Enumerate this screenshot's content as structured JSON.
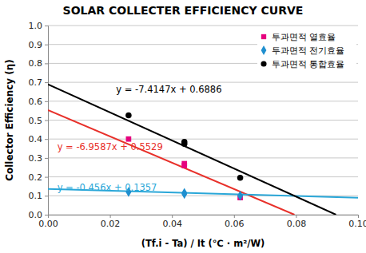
{
  "chart_data": {
    "type": "scatter",
    "title": "SOLAR COLLECTER EFFICIENCY CURVE",
    "x_label": "(Tf.i - Ta) / It  (℃ · m²/W)",
    "y_label": "Collector Efficiency (η)",
    "series": [
      {
        "name": "투과면적 열효율",
        "color": "#e6007e",
        "marker": "square",
        "x": [
          0.026,
          0.044,
          0.044,
          0.062
        ],
        "values": [
          0.4,
          0.27,
          0.26,
          0.09
        ]
      },
      {
        "name": "투과면적 전기효율",
        "color": "#1f8fcf",
        "marker": "diamond",
        "x": [
          0.026,
          0.044,
          0.044,
          0.062
        ],
        "values": [
          0.12,
          0.115,
          0.11,
          0.1
        ]
      },
      {
        "name": "투과면적 통합효율",
        "color": "#000000",
        "marker": "circle",
        "x": [
          0.026,
          0.044,
          0.044,
          0.062
        ],
        "values": [
          0.525,
          0.385,
          0.375,
          0.195
        ]
      }
    ],
    "trendlines": [
      {
        "equation": "y = -6.9587x + 0.5529",
        "color": "#e8302a",
        "x": [
          0,
          0.0795
        ],
        "values": [
          0.553,
          0
        ]
      },
      {
        "equation": "y = -0.456x + 0.1357",
        "color": "#2aa7d8",
        "x": [
          0,
          0.1
        ],
        "values": [
          0.136,
          0.09
        ]
      },
      {
        "equation": "y = -7.4147x + 0.6886",
        "color": "#000000",
        "x": [
          0,
          0.0929
        ],
        "values": [
          0.689,
          0
        ]
      }
    ],
    "xlim": [
      0,
      0.1
    ],
    "xticks": [
      {
        "value": 0,
        "label": "0.00"
      },
      {
        "value": 0.02,
        "label": "0.02"
      },
      {
        "value": 0.04,
        "label": "0.04"
      },
      {
        "value": 0.06,
        "label": "0.06"
      },
      {
        "value": 0.08,
        "label": "0.08"
      },
      {
        "value": 0.1,
        "label": "0.10"
      }
    ],
    "ylim": [
      0,
      1
    ],
    "yticks": [
      {
        "value": 0,
        "label": "0.0"
      },
      {
        "value": 0.1,
        "label": "0.1"
      },
      {
        "value": 0.2,
        "label": "0.2"
      },
      {
        "value": 0.3,
        "label": "0.3"
      },
      {
        "value": 0.4,
        "label": "0.4"
      },
      {
        "value": 0.5,
        "label": "0.5"
      },
      {
        "value": 0.6,
        "label": "0.6"
      },
      {
        "value": 0.7,
        "label": "0.7"
      },
      {
        "value": 0.8,
        "label": "0.8"
      },
      {
        "value": 0.9,
        "label": "0.9"
      },
      {
        "value": 1,
        "label": "1.0"
      }
    ],
    "grid": true,
    "legend": "upper right"
  }
}
